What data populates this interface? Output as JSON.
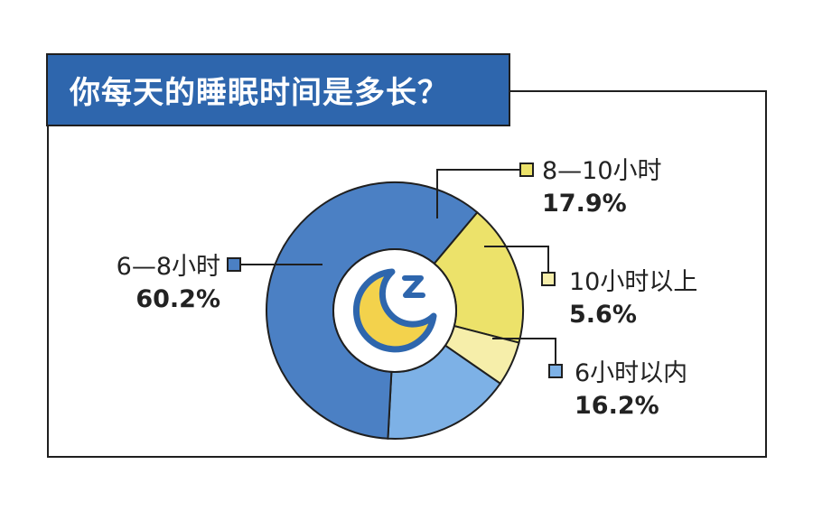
{
  "title": "你每天的睡眠时间是多长？",
  "chart_data": {
    "type": "pie",
    "donut": true,
    "categories": [
      "8—10小时",
      "10小时以上",
      "6小时以内",
      "6—8小时"
    ],
    "values": [
      17.9,
      5.6,
      16.2,
      60.2
    ],
    "labels": [
      "17.9%",
      "5.6%",
      "16.2%",
      "60.2%"
    ],
    "colors": [
      "#ece26a",
      "#f6eeaa",
      "#7db1e6",
      "#4b80c4"
    ],
    "start_angle_deg": -50,
    "direction": "clockwise",
    "legend": "callouts"
  },
  "center_icon": "moon-sleep-icon",
  "accent": "#2e66ad"
}
